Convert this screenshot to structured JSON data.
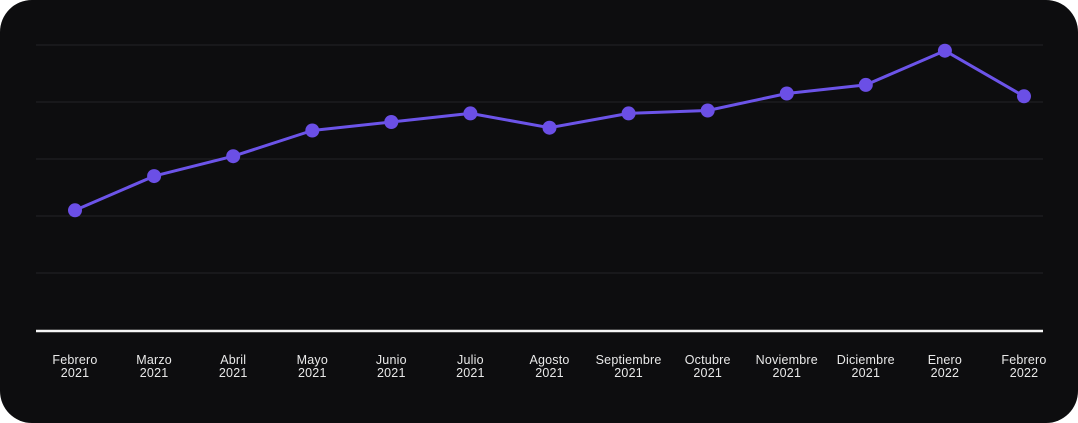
{
  "chart_data": {
    "type": "line",
    "categories": [
      "Febrero 2021",
      "Marzo 2021",
      "Abril 2021",
      "Mayo 2021",
      "Junio 2021",
      "Julio 2021",
      "Agosto 2021",
      "Septiembre 2021",
      "Octubre 2021",
      "Noviembre 2021",
      "Diciembre 2021",
      "Enero 2022",
      "Febrero 2022"
    ],
    "values": [
      42,
      54,
      61,
      70,
      73,
      76,
      71,
      76,
      77,
      83,
      86,
      98,
      82
    ],
    "title": "",
    "xlabel": "",
    "ylabel": "",
    "ylim": [
      0,
      100
    ],
    "gridline_values": [
      20,
      40,
      60,
      80,
      100
    ],
    "grid": true,
    "legend": "none",
    "y_axis_tick_labels_visible": false,
    "x_tick_label_lines": 2
  },
  "colors": {
    "accent": "#6C54E9",
    "point_fill": "#6B4FE6",
    "card_background": "#0D0D0F",
    "page_background": "#FFFFFF",
    "gridline": "#232327",
    "axis_line": "#F5F5F5",
    "label_text": "#E9E9E9"
  }
}
